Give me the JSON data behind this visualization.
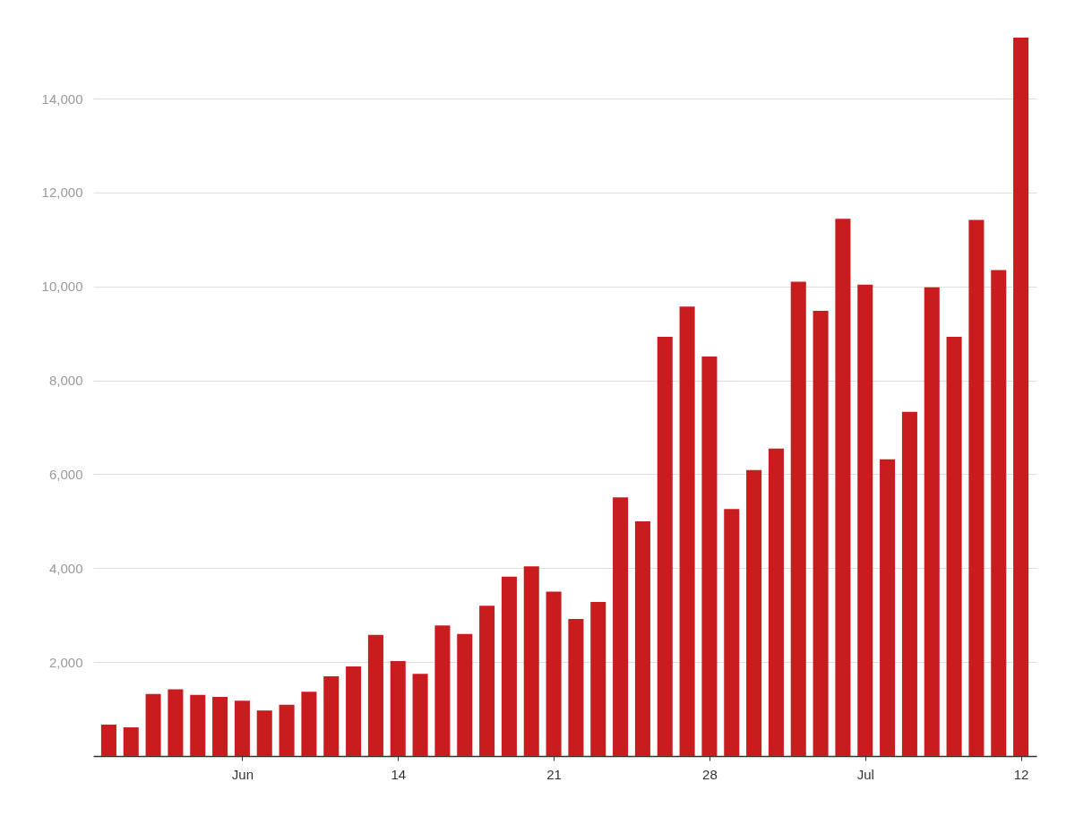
{
  "chart_data": {
    "type": "bar",
    "x": [
      "--06-01",
      "--06-02",
      "--06-03",
      "--06-04",
      "--06-05",
      "--06-06",
      "--06-07",
      "--06-08",
      "--06-09",
      "--06-10",
      "--06-11",
      "--06-12",
      "--06-13",
      "--06-14",
      "--06-15",
      "--06-16",
      "--06-17",
      "--06-18",
      "--06-19",
      "--06-20",
      "--06-21",
      "--06-22",
      "--06-23",
      "--06-24",
      "--06-25",
      "--06-26",
      "--06-27",
      "--06-28",
      "--06-29",
      "--06-30",
      "--07-01",
      "--07-02",
      "--07-03",
      "--07-04",
      "--07-05",
      "--07-06",
      "--07-07",
      "--07-08",
      "--07-09",
      "--07-10",
      "--07-11",
      "--07-12"
    ],
    "values": [
      670,
      610,
      1320,
      1420,
      1300,
      1260,
      1180,
      970,
      1090,
      1370,
      1700,
      1910,
      2580,
      2020,
      1750,
      2780,
      2600,
      3200,
      3820,
      4040,
      3500,
      2920,
      3280,
      5510,
      5000,
      8930,
      9570,
      8510,
      5260,
      6090,
      6550,
      10100,
      9480,
      11440,
      10040,
      6320,
      7330,
      9980,
      8930,
      11420,
      10350,
      15300
    ],
    "color": "#c81c1e",
    "xlim": [
      "--05-31T12:00",
      "--07-12T12:00"
    ],
    "xticks": [
      {
        "value": "--06-07",
        "label": "Jun"
      },
      {
        "value": "--06-14",
        "label": "14"
      },
      {
        "value": "--06-21",
        "label": "21"
      },
      {
        "value": "--06-28",
        "label": "28"
      },
      {
        "value": "--07-05",
        "label": "Jul"
      },
      {
        "value": "--07-12",
        "label": "12"
      }
    ],
    "ylim": [
      0,
      15300
    ],
    "yticks": [
      {
        "value": 2000,
        "label": "2,000"
      },
      {
        "value": 4000,
        "label": "4,000"
      },
      {
        "value": 6000,
        "label": "6,000"
      },
      {
        "value": 8000,
        "label": "8,000"
      },
      {
        "value": 10000,
        "label": "10,000"
      },
      {
        "value": 12000,
        "label": "12,000"
      },
      {
        "value": 14000,
        "label": "14,000"
      }
    ],
    "grid": "y"
  }
}
